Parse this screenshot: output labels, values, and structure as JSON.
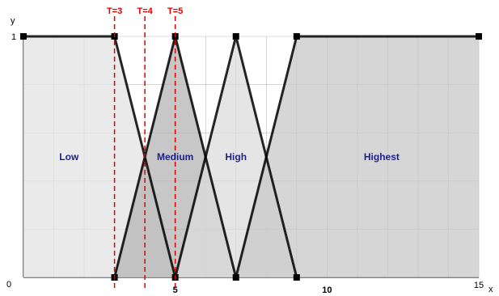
{
  "chart_data": {
    "type": "area",
    "xlabel": "x",
    "ylabel": "y",
    "xlim": [
      0,
      15
    ],
    "ylim": [
      0,
      1
    ],
    "grid": true,
    "x_tick_labels": [
      {
        "value": 0,
        "label": "0",
        "bold": false
      },
      {
        "value": 5,
        "label": "5",
        "bold": true
      },
      {
        "value": 10,
        "label": "10",
        "bold": true
      },
      {
        "value": 15,
        "label": "15",
        "bold": false
      }
    ],
    "y_tick_labels": [
      {
        "value": 0,
        "label": "0"
      },
      {
        "value": 1,
        "label": "1"
      }
    ],
    "series": [
      {
        "name": "Low",
        "points": [
          [
            0,
            1
          ],
          [
            3,
            1
          ],
          [
            5,
            0
          ]
        ],
        "fill": "#e3e3e3",
        "label_at": [
          1.5,
          0.5
        ]
      },
      {
        "name": "Medium",
        "points": [
          [
            3,
            0
          ],
          [
            5,
            1
          ],
          [
            7,
            0
          ]
        ],
        "fill": "#b4b4b4",
        "label_at": [
          5,
          0.5
        ]
      },
      {
        "name": "High",
        "points": [
          [
            5,
            0
          ],
          [
            7,
            1
          ],
          [
            9,
            0
          ]
        ],
        "fill": "#dcdcdc",
        "label_at": [
          7,
          0.5
        ]
      },
      {
        "name": "Highest",
        "points": [
          [
            7,
            0
          ],
          [
            9,
            1
          ],
          [
            15,
            1
          ]
        ],
        "fill": "#c8c8c8",
        "label_at": [
          11.8,
          0.5
        ]
      }
    ],
    "thresholds": [
      {
        "label": "T=3",
        "x": 3
      },
      {
        "label": "T=4",
        "x": 4
      },
      {
        "label": "T=5",
        "x": 5
      }
    ],
    "colors": {
      "threshold": "#e00000",
      "set_label": "#1f1f8c",
      "grid": "#8c8c8c"
    }
  }
}
